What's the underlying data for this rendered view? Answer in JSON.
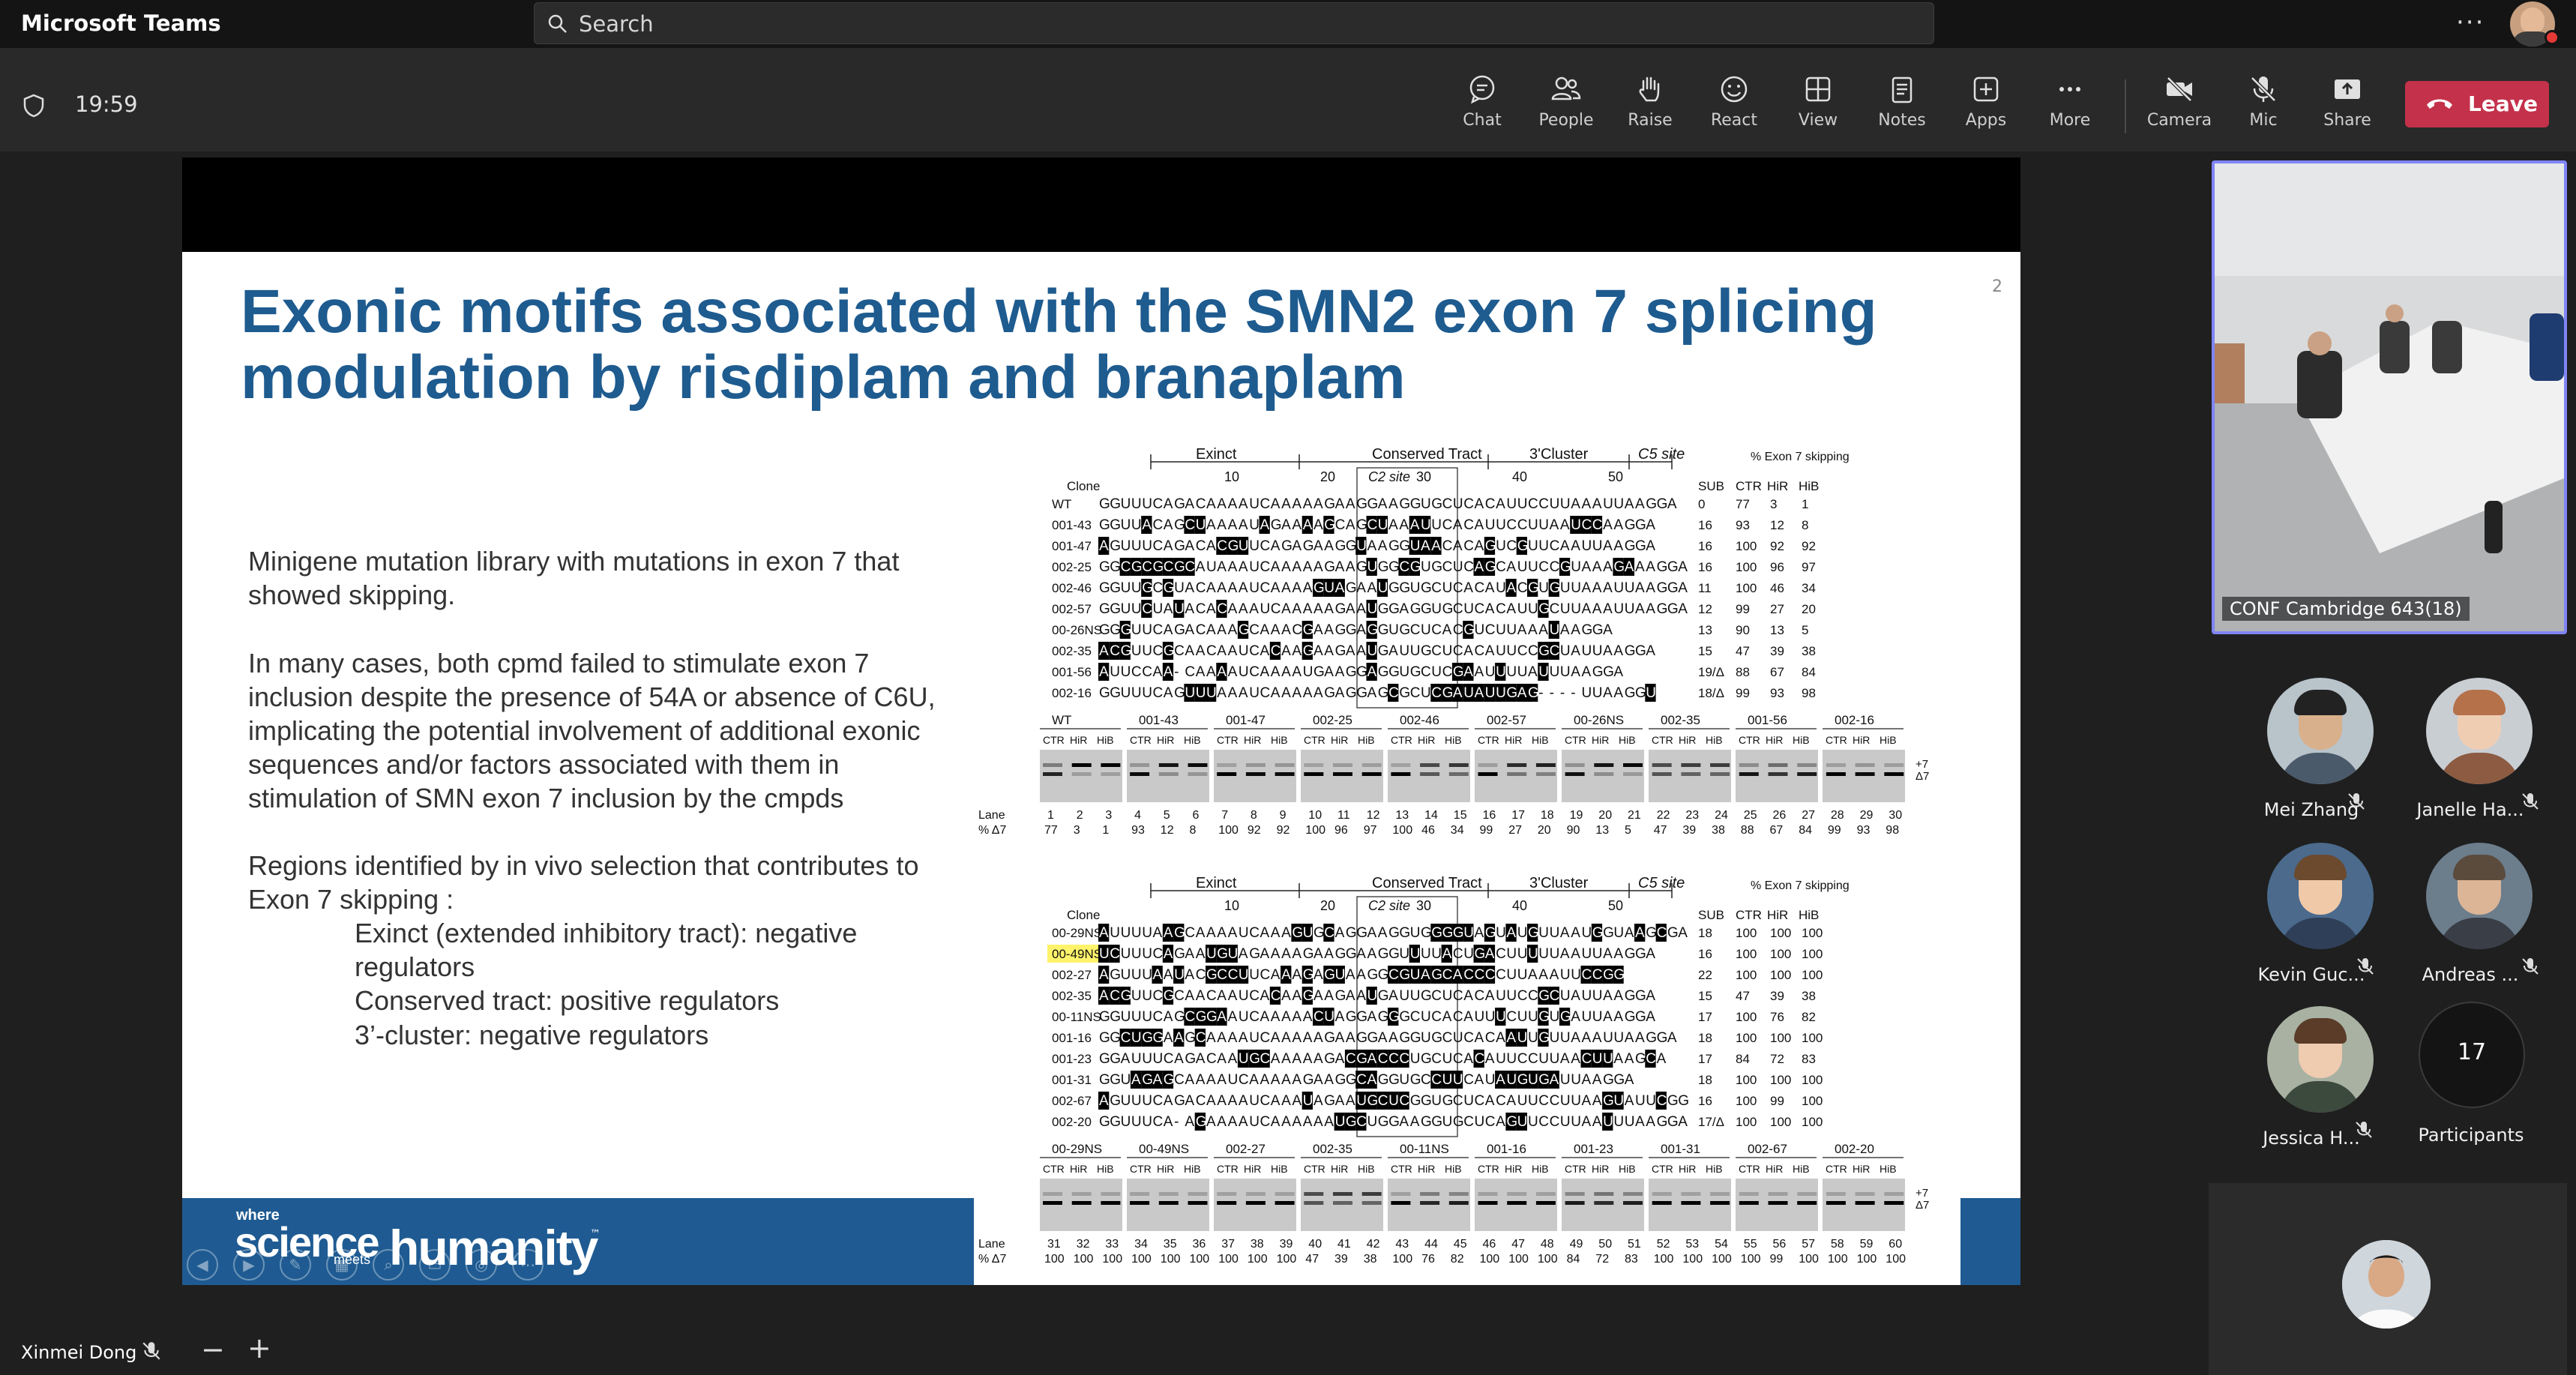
{
  "app": {
    "title": "Microsoft Teams"
  },
  "search": {
    "placeholder": "Search"
  },
  "titlebar": {
    "more_label": "···"
  },
  "meeting": {
    "timer": "19:59"
  },
  "toolbar": {
    "chat": "Chat",
    "people": "People",
    "raise": "Raise",
    "react": "React",
    "view": "View",
    "notes": "Notes",
    "apps": "Apps",
    "more": "More",
    "camera": "Camera",
    "mic": "Mic",
    "share": "Share",
    "leave": "Leave"
  },
  "slide": {
    "title": "Exonic motifs associated with the SMN2 exon 7 splicing modulation by risdiplam and branaplam",
    "page_number": "2",
    "bullets": [
      "Minigene mutation library with mutations in exon 7 that showed skipping.",
      "In many cases, both cpmd failed to stimulate exon 7 inclusion despite the presence of 54A or absence of C6U, implicating the potential involvement of additional exonic sequences and/or factors associated with them in stimulation of SMN exon 7 inclusion by the cmpds",
      "Regions identified by in vivo selection that contributes to Exon 7 skipping :",
      "Exinct (extended inhibitory tract): negative regulators",
      "Conserved tract: positive regulators",
      "3’-cluster: negative regulators"
    ],
    "footer": {
      "where": "where",
      "science": "science",
      "meets": "meets",
      "humanity": "humanity",
      "tm": "™"
    }
  },
  "figure": {
    "region_labels": [
      "Exinct",
      "Conserved Tract",
      "3'Cluster",
      "C5 site"
    ],
    "c2_label": "C2 site",
    "position_ticks": [
      "10",
      "20",
      "30",
      "40",
      "50"
    ],
    "pct_header": "% Exon 7 skipping",
    "col_headers": [
      "Clone",
      "SUB",
      "CTR",
      "HiR",
      "HiB"
    ],
    "lane_label": "Lane",
    "delta_label": "% Δ7",
    "plus7": "+7",
    "minus7": "Δ7",
    "lane_subheaders": [
      "CTR",
      "HiR",
      "HiB"
    ],
    "panel_a": {
      "rows": [
        {
          "clone": "WT",
          "seq": "GGUUUCAGACAAAAUCAAAAAGAAGGAAGGUGCUCACAUUCCUUAAAUUAAGGA",
          "sub": "0",
          "ctr": "77",
          "hir": "3",
          "hib": "1"
        },
        {
          "clone": "001-43",
          "seq": "GGUUaCAGcuAAAAUaGAAaAgCAGcuAAauUCACAUUCCUUAAuccAAGGA",
          "sub": "16",
          "ctr": "93",
          "hir": "12",
          "hib": "8"
        },
        {
          "clone": "001-47",
          "seq": "aGUUUCAGACAcguUCAGAGAAGGuAAGGuaaCACAgUCgUUCAAUUAAGGA",
          "sub": "16",
          "ctr": "100",
          "hir": "92",
          "hib": "92"
        },
        {
          "clone": "002-25",
          "seq": "GGcgcgcgcAUAAAUCAAAAAGAAGuGGcgUGCUCagCAUUCCgUAAAgaAAGGA",
          "sub": "16",
          "ctr": "100",
          "hir": "96",
          "hib": "97"
        },
        {
          "clone": "002-46",
          "seq": "GGUUgCgUACAAAAUCAAAAguaGAAuGGUGCUCACAUaCgUgUUAAAUUAAGGA",
          "sub": "11",
          "ctr": "100",
          "hir": "46",
          "hib": "34"
        },
        {
          "clone": "002-57",
          "seq": "GGUUcUAuACAcAAAUCAAAAAGAAuGGAGGUGCUCACAUUgCUUAAAUUAAGGA",
          "sub": "12",
          "ctr": "99",
          "hir": "27",
          "hib": "20"
        },
        {
          "clone": "00-26NS",
          "seq": "GGgUUCAGACAAAgCAAACgAAGGAgGUGCUCACgUCUUAAAuAAGGA",
          "sub": "13",
          "ctr": "90",
          "hir": "13",
          "hib": "5"
        },
        {
          "clone": "002-35",
          "seq": "acgUUCgCAACAAUCAcAAgAAGAAuGAUUGCUCACAUUCCgcUAUUAAGGA",
          "sub": "15",
          "ctr": "47",
          "hir": "39",
          "hib": "38"
        },
        {
          "clone": "001-56",
          "seq": "aUUCCAa-CAAaAUCAAAAUGAAGGaGGUGCUCgaAUuUUAuUUAAGGA",
          "sub": "19/Δ",
          "ctr": "88",
          "hir": "67",
          "hib": "84"
        },
        {
          "clone": "002-16",
          "seq": "GGUUUCAGuuuAAAUCAAAAAGAGGAGcGCUcgauauugag----UUAAGGu",
          "sub": "18/Δ",
          "ctr": "99",
          "hir": "93",
          "hib": "98"
        }
      ],
      "gel_groups": [
        "WT",
        "001-43",
        "001-47",
        "002-25",
        "002-46",
        "002-57",
        "00-26NS",
        "002-35",
        "001-56",
        "002-16"
      ],
      "lanes": [
        "1",
        "2",
        "3",
        "4",
        "5",
        "6",
        "7",
        "8",
        "9",
        "10",
        "11",
        "12",
        "13",
        "14",
        "15",
        "16",
        "17",
        "18",
        "19",
        "20",
        "21",
        "22",
        "23",
        "24",
        "25",
        "26",
        "27",
        "28",
        "29",
        "30"
      ],
      "delta7": [
        "77",
        "3",
        "1",
        "93",
        "12",
        "8",
        "100",
        "92",
        "92",
        "100",
        "96",
        "97",
        "100",
        "46",
        "34",
        "99",
        "27",
        "20",
        "90",
        "13",
        "5",
        "47",
        "39",
        "38",
        "88",
        "67",
        "84",
        "99",
        "93",
        "98"
      ]
    },
    "panel_b": {
      "rows": [
        {
          "clone": "00-29NS",
          "seq": "aUUUUAagCAAAAUCAAAguGcAGGAAGGUGggguAgUaUgUUAAUgGUAaGcGA",
          "sub": "18",
          "ctr": "100",
          "hir": "100",
          "hib": "100"
        },
        {
          "clone": "00-49NS",
          "seq": "ucUUUCaGAAuguAGAAAAGAAGGAAGGUuUUaCUgaCUUuUUAAUUAAGGA",
          "sub": "16",
          "ctr": "100",
          "hir": "100",
          "hib": "100"
        },
        {
          "clone": "002-27",
          "seq": "aGUUUaAuACgccuUCAaAgAguAAGGcguagcacccCUUAAAUUccgg",
          "sub": "22",
          "ctr": "100",
          "hir": "100",
          "hib": "100"
        },
        {
          "clone": "002-35",
          "seq": "acgUUCgCAACAAUCAcAAgAAGAAuGAUUGCUCACAUUCCgcUAUUAAGGA",
          "sub": "15",
          "ctr": "47",
          "hir": "39",
          "hib": "38"
        },
        {
          "clone": "00-11NS",
          "seq": "GGUUUCAGcggaAUCAAAAAcuAGGAGgGCUCACAUUuCUUgUgAUUAAGGA",
          "sub": "17",
          "ctr": "100",
          "hir": "76",
          "hib": "82"
        },
        {
          "clone": "001-16",
          "seq": "GGcuggAaGcAAAAUCAAAAAGAAGGAAGGUGCUCACAauUgUUAAAUUAAGGA",
          "sub": "18",
          "ctr": "100",
          "hir": "100",
          "hib": "100"
        },
        {
          "clone": "001-23",
          "seq": "GGAUUUCAGACAAugcAAAAAGAcgacccUGCUCAcAUUCCUUAAcuuAAGcA",
          "sub": "17",
          "ctr": "84",
          "hir": "72",
          "hib": "83"
        },
        {
          "clone": "001-31",
          "seq": "GGUagagCAAAAUCAAAAAGAAGGcaGGUGCcuuCAUaugugaUUAAGGA",
          "sub": "18",
          "ctr": "100",
          "hir": "100",
          "hib": "100"
        },
        {
          "clone": "002-67",
          "seq": "aGUUUCAGACAAAAUCAAAuAGAAugcucGGUGCUCACAUUCCUUAAguAUUcGG",
          "sub": "16",
          "ctr": "100",
          "hir": "99",
          "hib": "100"
        },
        {
          "clone": "002-20",
          "seq": "GGUUUCA-AgAAAAUCAAAAAAugcUGGAAGGUGCUCAguUCCUUAAuUUAAGGA",
          "sub": "17/Δ",
          "ctr": "100",
          "hir": "100",
          "hib": "100"
        }
      ],
      "gel_groups": [
        "00-29NS",
        "00-49NS",
        "002-27",
        "002-35",
        "00-11NS",
        "001-16",
        "001-23",
        "001-31",
        "002-67",
        "002-20"
      ],
      "lanes": [
        "31",
        "32",
        "33",
        "34",
        "35",
        "36",
        "37",
        "38",
        "39",
        "40",
        "41",
        "42",
        "43",
        "44",
        "45",
        "46",
        "47",
        "48",
        "49",
        "50",
        "51",
        "52",
        "53",
        "54",
        "55",
        "56",
        "57",
        "58",
        "59",
        "60"
      ],
      "delta7": [
        "100",
        "100",
        "100",
        "100",
        "100",
        "100",
        "100",
        "100",
        "100",
        "47",
        "39",
        "38",
        "100",
        "76",
        "82",
        "100",
        "100",
        "100",
        "84",
        "72",
        "83",
        "100",
        "100",
        "100",
        "100",
        "99",
        "100",
        "100",
        "100",
        "100"
      ]
    }
  },
  "participants": {
    "room_label": "CONF Cambridge 643(18)",
    "people": [
      {
        "name": "Mei Zhang"
      },
      {
        "name": "Janelle Ha..."
      },
      {
        "name": "Kevin Guc..."
      },
      {
        "name": "Andreas ..."
      },
      {
        "name": "Jessica H..."
      }
    ],
    "count": "17",
    "count_label": "Participants"
  },
  "presenter": {
    "name": "Xinmei Dong"
  },
  "zoom": {
    "out": "−",
    "in": "+"
  },
  "colors": {
    "accent": "#7f85f5",
    "leave": "#c4314b",
    "slide_title": "#1e5b8f",
    "footer": "#1f5b92",
    "highlight": "#fff36b"
  }
}
